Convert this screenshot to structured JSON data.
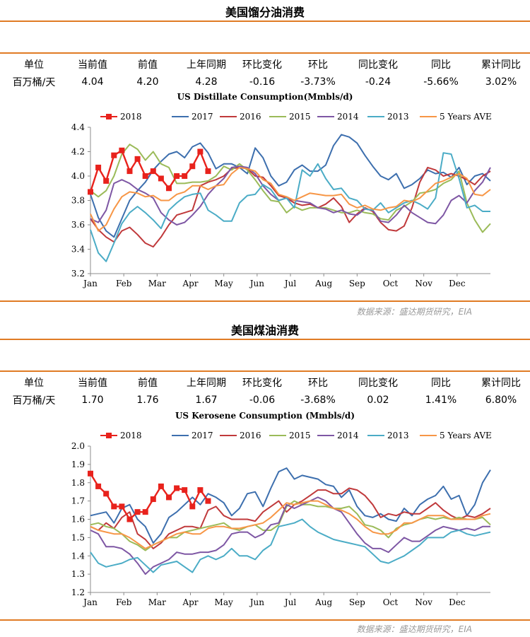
{
  "legend_label_18": "2018",
  "sections": [
    {
      "title": "美国馏分油消费",
      "table": {
        "headers": [
          "单位",
          "当前值",
          "前值",
          "上年同期",
          "环比变化",
          "环比",
          "同比变化",
          "同比",
          "累计同比"
        ],
        "values": [
          "百万桶/天",
          "4.04",
          "4.20",
          "4.28",
          "-0.16",
          "-3.73%",
          "-0.24",
          "-5.66%",
          "3.02%"
        ]
      },
      "source": "数据来源：盛达期货研究，EIA",
      "chart_data": {
        "type": "line",
        "title": "US Distillate Consumption(Mmbls/d)",
        "xlabel": "",
        "ylabel": "",
        "ylim": [
          3.2,
          4.4
        ],
        "yticks": [
          "3.2",
          "3.4",
          "3.6",
          "3.8",
          "4.0",
          "4.2",
          "4.4"
        ],
        "x_ticks": [
          "Jan",
          "Feb",
          "Mar",
          "Apr",
          "May",
          "Jun",
          "Jul",
          "Aug",
          "Sep",
          "Oct",
          "Nov",
          "Dec"
        ],
        "x_unit": "week of year",
        "legend_position": "top",
        "grid": false,
        "series": [
          {
            "name": "2018",
            "color": "#e8221c",
            "marker": "square",
            "values": [
              3.87,
              4.07,
              3.96,
              4.17,
              4.21,
              4.04,
              4.14,
              4.0,
              4.04,
              3.98,
              3.9,
              4.0,
              4.0,
              4.08,
              4.2,
              4.04
            ]
          },
          {
            "name": "2017",
            "color": "#3d6fae",
            "values": [
              3.85,
              3.66,
              3.55,
              3.5,
              3.65,
              3.8,
              3.88,
              3.95,
              4.05,
              4.12,
              4.18,
              4.2,
              4.15,
              4.24,
              4.27,
              4.19,
              4.06,
              4.1,
              4.1,
              4.07,
              4.02,
              4.23,
              4.15,
              4.0,
              3.92,
              3.95,
              4.05,
              4.09,
              4.04,
              4.04,
              4.09,
              4.25,
              4.34,
              4.32,
              4.27,
              4.17,
              4.08,
              4.0,
              3.97,
              4.02,
              3.9,
              3.93,
              3.98,
              4.05,
              4.02,
              4.03,
              3.99,
              4.07,
              3.93,
              4.0,
              4.02,
              3.96
            ]
          },
          {
            "name": "2016",
            "color": "#c0393b",
            "values": [
              3.65,
              3.56,
              3.5,
              3.46,
              3.55,
              3.58,
              3.52,
              3.45,
              3.42,
              3.5,
              3.6,
              3.68,
              3.7,
              3.72,
              3.92,
              3.95,
              3.97,
              4.0,
              4.06,
              4.07,
              4.06,
              4.0,
              3.99,
              3.92,
              3.84,
              3.82,
              3.78,
              3.76,
              3.77,
              3.74,
              3.77,
              3.82,
              3.75,
              3.62,
              3.69,
              3.74,
              3.71,
              3.62,
              3.56,
              3.55,
              3.59,
              3.74,
              3.95,
              4.07,
              4.05,
              4.0,
              4.02,
              4.0,
              3.97,
              3.93,
              4.0,
              4.04
            ]
          },
          {
            "name": "2015",
            "color": "#9bbb59",
            "values": [
              3.88,
              3.83,
              3.88,
              4.0,
              4.18,
              4.26,
              4.22,
              4.13,
              4.2,
              4.1,
              4.07,
              3.94,
              3.94,
              3.95,
              3.95,
              3.96,
              4.0,
              4.08,
              4.05,
              4.1,
              4.05,
              3.97,
              3.88,
              3.8,
              3.79,
              3.7,
              3.75,
              3.72,
              3.74,
              3.74,
              3.74,
              3.72,
              3.7,
              3.7,
              3.72,
              3.7,
              3.69,
              3.65,
              3.64,
              3.72,
              3.75,
              3.79,
              3.86,
              3.87,
              3.89,
              3.94,
              3.97,
              4.04,
              3.78,
              3.64,
              3.54,
              3.61
            ]
          },
          {
            "name": "2014",
            "color": "#7e57a4",
            "values": [
              3.65,
              3.62,
              3.72,
              3.94,
              3.97,
              3.94,
              3.89,
              3.86,
              3.82,
              3.7,
              3.64,
              3.6,
              3.62,
              3.68,
              3.75,
              3.85,
              3.92,
              3.98,
              4.07,
              4.08,
              4.07,
              4.02,
              3.92,
              3.85,
              3.8,
              3.82,
              3.8,
              3.79,
              3.78,
              3.74,
              3.73,
              3.7,
              3.72,
              3.69,
              3.68,
              3.73,
              3.72,
              3.63,
              3.62,
              3.68,
              3.76,
              3.7,
              3.66,
              3.62,
              3.61,
              3.68,
              3.8,
              3.84,
              3.78,
              3.88,
              3.95,
              4.07
            ]
          },
          {
            "name": "2013",
            "color": "#4bacc6",
            "values": [
              3.56,
              3.37,
              3.3,
              3.45,
              3.61,
              3.7,
              3.75,
              3.7,
              3.64,
              3.57,
              3.72,
              3.78,
              3.83,
              3.85,
              3.86,
              3.72,
              3.68,
              3.63,
              3.63,
              3.78,
              3.84,
              3.85,
              3.93,
              3.89,
              3.8,
              3.82,
              3.74,
              4.05,
              4.0,
              4.1,
              3.98,
              3.89,
              3.9,
              3.82,
              3.8,
              3.73,
              3.72,
              3.78,
              3.7,
              3.74,
              3.78,
              3.8,
              3.77,
              3.73,
              3.82,
              4.19,
              4.18,
              3.98,
              3.74,
              3.76,
              3.71,
              3.71
            ]
          },
          {
            "name": "5 Years AVE",
            "color": "#f79646",
            "values": [
              3.69,
              3.55,
              3.6,
              3.73,
              3.83,
              3.87,
              3.86,
              3.83,
              3.84,
              3.8,
              3.8,
              3.85,
              3.87,
              3.92,
              3.92,
              3.89,
              3.92,
              3.93,
              4.02,
              4.07,
              4.06,
              4.04,
              3.97,
              3.94,
              3.85,
              3.83,
              3.8,
              3.83,
              3.86,
              3.85,
              3.84,
              3.84,
              3.85,
              3.77,
              3.74,
              3.76,
              3.73,
              3.72,
              3.74,
              3.75,
              3.8,
              3.79,
              3.82,
              3.88,
              3.94,
              3.96,
              3.99,
              4.02,
              3.98,
              3.85,
              3.84,
              3.89
            ]
          }
        ]
      }
    },
    {
      "title": "美国煤油消费",
      "table": {
        "headers": [
          "单位",
          "当前值",
          "前值",
          "上年同期",
          "环比变化",
          "环比",
          "同比变化",
          "同比",
          "累计同比"
        ],
        "values": [
          "百万桶/天",
          "1.70",
          "1.76",
          "1.67",
          "-0.06",
          "-3.68%",
          "0.02",
          "1.41%",
          "6.80%"
        ]
      },
      "source": "数据来源：盛达期货研究，EIA",
      "chart_data": {
        "type": "line",
        "title": "US Kerosene Consumption (Mmbls/d)",
        "xlabel": "",
        "ylabel": "",
        "ylim": [
          1.2,
          2.0
        ],
        "yticks": [
          "1.2",
          "1.3",
          "1.4",
          "1.5",
          "1.6",
          "1.7",
          "1.8",
          "1.9",
          "2.0"
        ],
        "x_ticks": [
          "Jan",
          "Feb",
          "Mar",
          "Apr",
          "May",
          "Jun",
          "Jul",
          "Aug",
          "Sep",
          "Oct",
          "Nov",
          "Dec"
        ],
        "x_unit": "week of year",
        "legend_position": "top",
        "grid": false,
        "series": [
          {
            "name": "2018",
            "color": "#e8221c",
            "marker": "square",
            "values": [
              1.85,
              1.78,
              1.74,
              1.67,
              1.67,
              1.6,
              1.64,
              1.64,
              1.71,
              1.78,
              1.72,
              1.77,
              1.76,
              1.67,
              1.76,
              1.7
            ]
          },
          {
            "name": "2017",
            "color": "#3d6fae",
            "values": [
              1.62,
              1.63,
              1.64,
              1.58,
              1.66,
              1.68,
              1.6,
              1.56,
              1.47,
              1.52,
              1.61,
              1.64,
              1.68,
              1.72,
              1.68,
              1.74,
              1.72,
              1.69,
              1.62,
              1.66,
              1.74,
              1.75,
              1.67,
              1.77,
              1.86,
              1.88,
              1.82,
              1.84,
              1.83,
              1.82,
              1.79,
              1.78,
              1.72,
              1.76,
              1.67,
              1.62,
              1.61,
              1.63,
              1.6,
              1.59,
              1.66,
              1.62,
              1.68,
              1.71,
              1.73,
              1.78,
              1.71,
              1.73,
              1.62,
              1.68,
              1.8,
              1.87
            ]
          },
          {
            "name": "2016",
            "color": "#c0393b",
            "values": [
              1.56,
              1.54,
              1.58,
              1.55,
              1.61,
              1.64,
              1.52,
              1.49,
              1.44,
              1.47,
              1.52,
              1.54,
              1.56,
              1.56,
              1.55,
              1.65,
              1.67,
              1.62,
              1.6,
              1.6,
              1.6,
              1.59,
              1.64,
              1.67,
              1.7,
              1.64,
              1.68,
              1.7,
              1.73,
              1.76,
              1.76,
              1.74,
              1.74,
              1.77,
              1.76,
              1.73,
              1.68,
              1.61,
              1.63,
              1.62,
              1.64,
              1.63,
              1.63,
              1.66,
              1.69,
              1.65,
              1.62,
              1.6,
              1.62,
              1.61,
              1.63,
              1.66
            ]
          },
          {
            "name": "2015",
            "color": "#9bbb59",
            "values": [
              1.57,
              1.58,
              1.56,
              1.55,
              1.52,
              1.48,
              1.46,
              1.43,
              1.46,
              1.48,
              1.5,
              1.5,
              1.53,
              1.54,
              1.55,
              1.56,
              1.57,
              1.58,
              1.55,
              1.54,
              1.56,
              1.57,
              1.54,
              1.54,
              1.57,
              1.67,
              1.7,
              1.68,
              1.68,
              1.67,
              1.67,
              1.66,
              1.66,
              1.67,
              1.63,
              1.57,
              1.56,
              1.54,
              1.5,
              1.55,
              1.57,
              1.58,
              1.6,
              1.61,
              1.6,
              1.61,
              1.6,
              1.61,
              1.6,
              1.6,
              1.61,
              1.57
            ]
          },
          {
            "name": "2014",
            "color": "#7e57a4",
            "values": [
              1.54,
              1.52,
              1.45,
              1.45,
              1.44,
              1.41,
              1.36,
              1.3,
              1.34,
              1.36,
              1.38,
              1.42,
              1.41,
              1.41,
              1.42,
              1.42,
              1.43,
              1.46,
              1.52,
              1.53,
              1.53,
              1.5,
              1.52,
              1.57,
              1.58,
              1.68,
              1.66,
              1.68,
              1.7,
              1.72,
              1.7,
              1.66,
              1.64,
              1.58,
              1.52,
              1.47,
              1.44,
              1.44,
              1.42,
              1.46,
              1.5,
              1.48,
              1.48,
              1.51,
              1.54,
              1.56,
              1.55,
              1.54,
              1.55,
              1.54,
              1.56,
              1.56
            ]
          },
          {
            "name": "2013",
            "color": "#4bacc6",
            "values": [
              1.42,
              1.36,
              1.34,
              1.35,
              1.36,
              1.38,
              1.39,
              1.35,
              1.31,
              1.35,
              1.36,
              1.37,
              1.34,
              1.31,
              1.38,
              1.4,
              1.38,
              1.4,
              1.44,
              1.4,
              1.4,
              1.38,
              1.43,
              1.46,
              1.56,
              1.57,
              1.58,
              1.6,
              1.56,
              1.53,
              1.51,
              1.49,
              1.48,
              1.47,
              1.46,
              1.45,
              1.41,
              1.37,
              1.36,
              1.38,
              1.4,
              1.43,
              1.46,
              1.5,
              1.5,
              1.5,
              1.53,
              1.54,
              1.52,
              1.51,
              1.52,
              1.53
            ]
          },
          {
            "name": "5 Years AVE",
            "color": "#f79646",
            "values": [
              1.56,
              1.54,
              1.53,
              1.52,
              1.52,
              1.5,
              1.47,
              1.44,
              1.46,
              1.48,
              1.5,
              1.52,
              1.53,
              1.52,
              1.52,
              1.55,
              1.56,
              1.56,
              1.55,
              1.55,
              1.56,
              1.57,
              1.58,
              1.61,
              1.65,
              1.69,
              1.68,
              1.69,
              1.7,
              1.7,
              1.68,
              1.66,
              1.65,
              1.63,
              1.6,
              1.56,
              1.53,
              1.52,
              1.52,
              1.54,
              1.58,
              1.58,
              1.6,
              1.62,
              1.62,
              1.62,
              1.6,
              1.6,
              1.6,
              1.6,
              1.62,
              1.63
            ]
          }
        ]
      }
    }
  ]
}
